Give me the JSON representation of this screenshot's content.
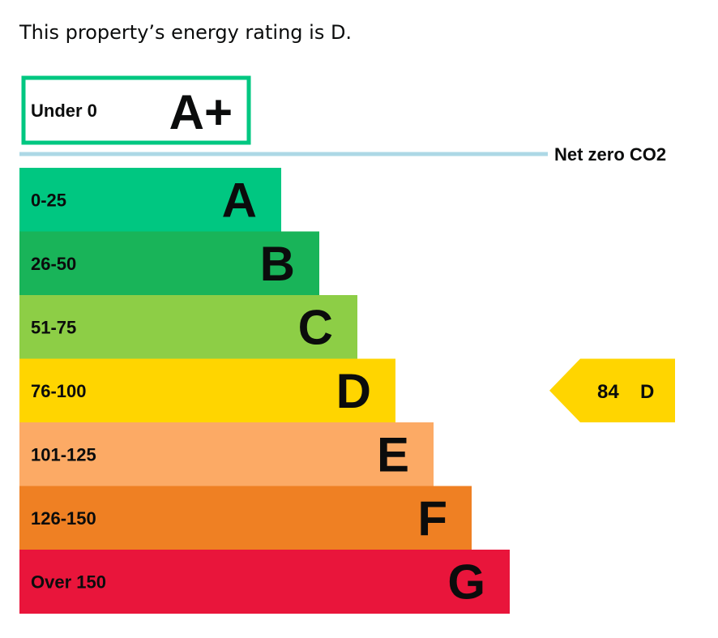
{
  "summary": {
    "text": "This property’s energy rating is D."
  },
  "chart_data": {
    "type": "bar",
    "top_band": {
      "range": "Under 0",
      "letter": "A+",
      "color": "#00c781"
    },
    "net_zero_label": "Net zero CO2",
    "net_zero_line_color": "#add8e6",
    "bands": [
      {
        "range": "0-25",
        "letter": "A",
        "color": "#00c781"
      },
      {
        "range": "26-50",
        "letter": "B",
        "color": "#19b459"
      },
      {
        "range": "51-75",
        "letter": "C",
        "color": "#8dce46"
      },
      {
        "range": "76-100",
        "letter": "D",
        "color": "#ffd500"
      },
      {
        "range": "101-125",
        "letter": "E",
        "color": "#fcaa65"
      },
      {
        "range": "126-150",
        "letter": "F",
        "color": "#ef8023"
      },
      {
        "range": "Over 150",
        "letter": "G",
        "color": "#e9153b"
      }
    ],
    "current": {
      "score": "84",
      "letter": "D",
      "color": "#ffd500"
    }
  }
}
